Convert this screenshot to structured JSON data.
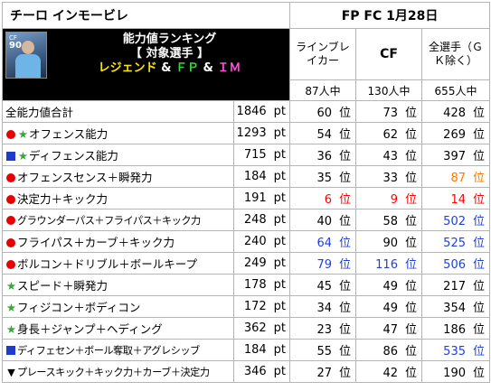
{
  "header": {
    "player_name": "チーロ インモービレ",
    "date_info": "FP FC 1月28日",
    "banner_line1": "能力値ランキング",
    "banner_line2": "【 対象選手 】",
    "banner_line3": [
      {
        "text": "レジェンド",
        "color": "#ffe600"
      },
      {
        "text": " & ",
        "color": "#ffffff"
      },
      {
        "text": "ＦＰ",
        "color": "#3cd23c"
      },
      {
        "text": " & ",
        "color": "#ffffff"
      },
      {
        "text": "ＩＭ",
        "color": "#ff4fd8"
      }
    ],
    "card_position": "CF",
    "card_rating": "90"
  },
  "columns": [
    {
      "label": "ラインブレイカー",
      "count": "87人中"
    },
    {
      "label": "CF",
      "count": "130人中"
    },
    {
      "label": "全選手（ＧＫ除く）",
      "count": "655人中"
    }
  ],
  "unit_pt": "pt",
  "unit_rank": "位",
  "colors": {
    "red": "#ff0000",
    "blue": "#1f3fd6",
    "orange": "#ff7a00",
    "green_star": "#3aa63a",
    "black": "#000000"
  },
  "rows": [
    {
      "marker": "none",
      "label": "全能力値合計",
      "pt": "1846",
      "ranks": [
        {
          "v": "60",
          "c": "black"
        },
        {
          "v": "73",
          "c": "black"
        },
        {
          "v": "428",
          "c": "black"
        }
      ]
    },
    {
      "marker": "dot-star",
      "label": "オフェンス能力",
      "pt": "1293",
      "ranks": [
        {
          "v": "54",
          "c": "black"
        },
        {
          "v": "62",
          "c": "black"
        },
        {
          "v": "269",
          "c": "black"
        }
      ]
    },
    {
      "marker": "square-star",
      "label": "ディフェンス能力",
      "pt": "715",
      "ranks": [
        {
          "v": "36",
          "c": "black"
        },
        {
          "v": "43",
          "c": "black"
        },
        {
          "v": "397",
          "c": "black"
        }
      ]
    },
    {
      "marker": "dot",
      "label": "オフェンスセンス＋瞬発力",
      "pt": "184",
      "ranks": [
        {
          "v": "35",
          "c": "black"
        },
        {
          "v": "33",
          "c": "black"
        },
        {
          "v": "87",
          "c": "orange"
        }
      ]
    },
    {
      "marker": "dot",
      "label": "決定力＋キック力",
      "pt": "191",
      "ranks": [
        {
          "v": "6",
          "c": "red"
        },
        {
          "v": "9",
          "c": "red"
        },
        {
          "v": "14",
          "c": "red"
        }
      ]
    },
    {
      "marker": "dot",
      "label": "グラウンダーパス＋フライパス＋キック力",
      "pt": "248",
      "ranks": [
        {
          "v": "40",
          "c": "black"
        },
        {
          "v": "58",
          "c": "black"
        },
        {
          "v": "502",
          "c": "blue"
        }
      ]
    },
    {
      "marker": "dot",
      "label": "フライパス＋カーブ＋キック力",
      "pt": "240",
      "ranks": [
        {
          "v": "64",
          "c": "blue"
        },
        {
          "v": "90",
          "c": "black"
        },
        {
          "v": "525",
          "c": "blue"
        }
      ]
    },
    {
      "marker": "dot",
      "label": "ボルコン＋ドリブル＋ボールキープ",
      "pt": "249",
      "ranks": [
        {
          "v": "79",
          "c": "blue"
        },
        {
          "v": "116",
          "c": "blue"
        },
        {
          "v": "506",
          "c": "blue"
        }
      ]
    },
    {
      "marker": "star",
      "label": "スピード＋瞬発力",
      "pt": "178",
      "ranks": [
        {
          "v": "45",
          "c": "black"
        },
        {
          "v": "49",
          "c": "black"
        },
        {
          "v": "217",
          "c": "black"
        }
      ]
    },
    {
      "marker": "star",
      "label": "フィジコン＋ボディコン",
      "pt": "172",
      "ranks": [
        {
          "v": "34",
          "c": "black"
        },
        {
          "v": "49",
          "c": "black"
        },
        {
          "v": "354",
          "c": "black"
        }
      ]
    },
    {
      "marker": "star",
      "label": "身長＋ジャンプ＋ヘディング",
      "pt": "362",
      "ranks": [
        {
          "v": "23",
          "c": "black"
        },
        {
          "v": "47",
          "c": "black"
        },
        {
          "v": "186",
          "c": "black"
        }
      ]
    },
    {
      "marker": "square",
      "label": "ディフェセン＋ボール奪取＋アグレシッブ",
      "pt": "184",
      "ranks": [
        {
          "v": "55",
          "c": "black"
        },
        {
          "v": "86",
          "c": "black"
        },
        {
          "v": "535",
          "c": "blue"
        }
      ]
    },
    {
      "marker": "triangle",
      "label": "プレースキック＋キック力＋カーブ＋決定力",
      "pt": "346",
      "ranks": [
        {
          "v": "27",
          "c": "black"
        },
        {
          "v": "42",
          "c": "black"
        },
        {
          "v": "190",
          "c": "black"
        }
      ]
    }
  ]
}
